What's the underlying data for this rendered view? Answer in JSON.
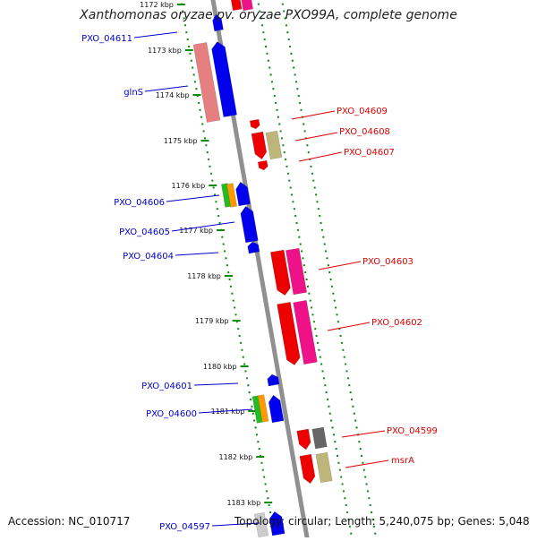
{
  "title": "Xanthomonas oryzae pv. oryzae PXO99A, complete genome",
  "footer": {
    "accession": "Accession: NC_010717",
    "topology": "Topology: circular; Length: 5,240,075 bp; Genes: 5,048"
  },
  "colors": {
    "forward_label": "#0000cc",
    "reverse_label": "#dd0000",
    "tick": "#0a8a0a",
    "backbone": "#909090",
    "blue": "#0000ee",
    "red": "#ee0000",
    "magenta": "#ee1188",
    "salmon": "#e68080",
    "khaki": "#bdb57a",
    "green": "#22bb22",
    "orange": "#ff9900",
    "gray": "#666666"
  },
  "ticks": [
    {
      "label": "1172 kbp"
    },
    {
      "label": "1173 kbp"
    },
    {
      "label": "1174 kbp"
    },
    {
      "label": "1175 kbp"
    },
    {
      "label": "1176 kbp"
    },
    {
      "label": "1177 kbp"
    },
    {
      "label": "1178 kbp"
    },
    {
      "label": "1179 kbp"
    },
    {
      "label": "1180 kbp"
    },
    {
      "label": "1181 kbp"
    },
    {
      "label": "1182 kbp"
    },
    {
      "label": "1183 kbp"
    }
  ],
  "labels_forward": [
    {
      "text": "PXO_04611"
    },
    {
      "text": "glnS"
    },
    {
      "text": "PXO_04606"
    },
    {
      "text": "PXO_04605"
    },
    {
      "text": "PXO_04604"
    },
    {
      "text": "PXO_04601"
    },
    {
      "text": "PXO_04600"
    },
    {
      "text": "PXO_04597"
    }
  ],
  "labels_reverse": [
    {
      "text": "PXO_04609"
    },
    {
      "text": "PXO_04608"
    },
    {
      "text": "PXO_04607"
    },
    {
      "text": "PXO_04603"
    },
    {
      "text": "PXO_04602"
    },
    {
      "text": "PXO_04599"
    },
    {
      "text": "msrA"
    }
  ]
}
